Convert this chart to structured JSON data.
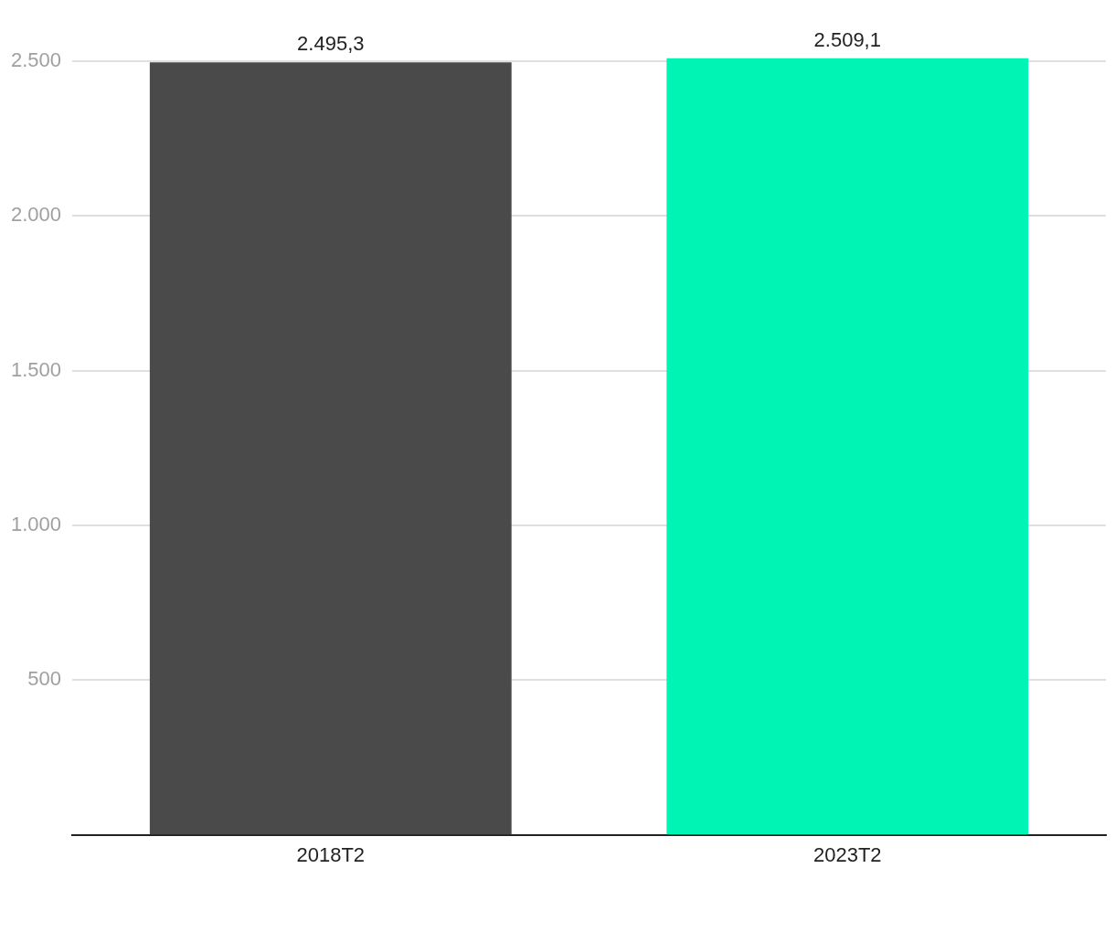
{
  "chart_data": {
    "type": "bar",
    "categories": [
      "2018T2",
      "2023T2"
    ],
    "values": [
      2495.3,
      2509.1
    ],
    "colors": [
      "#4a4a4a",
      "#00f4b4"
    ],
    "value_labels": [
      "2.495,3",
      "2.509,1"
    ],
    "ylim": [
      0,
      2520
    ],
    "yticks": [
      {
        "value": 500,
        "label": "500"
      },
      {
        "value": 1000,
        "label": "1.000"
      },
      {
        "value": 1500,
        "label": "1.500"
      },
      {
        "value": 2000,
        "label": "2.000"
      },
      {
        "value": 2500,
        "label": "2.500"
      }
    ],
    "grid": "y",
    "legend": false
  }
}
